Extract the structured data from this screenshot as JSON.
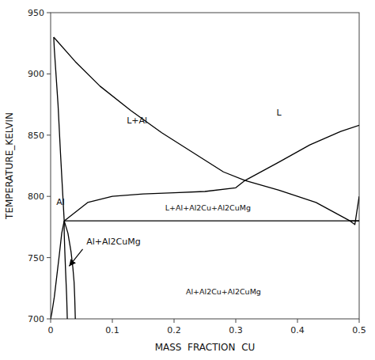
{
  "chart_data": {
    "type": "line",
    "xlabel": "MASS  FRACTION  CU",
    "ylabel": "TEMPERATURE_KELVIN",
    "xlim": [
      0,
      0.5
    ],
    "ylim": [
      700,
      950
    ],
    "xticks": [
      0,
      0.1,
      0.2,
      0.3,
      0.4,
      0.5
    ],
    "yticks": [
      700,
      750,
      800,
      850,
      900,
      950
    ],
    "color": "#000000",
    "series": [
      {
        "x": [
          0.005,
          0.006,
          0.008,
          0.012,
          0.016,
          0.022
        ],
        "values": [
          930,
          920,
          905,
          875,
          835,
          780
        ]
      },
      {
        "x": [
          0.005,
          0.04,
          0.08,
          0.13,
          0.18,
          0.23,
          0.28,
          0.315
        ],
        "values": [
          930,
          910,
          890,
          870,
          852,
          836,
          820,
          813
        ]
      },
      {
        "x": [
          0.315,
          0.37,
          0.42,
          0.47,
          0.5
        ],
        "values": [
          813,
          828,
          842,
          853,
          858
        ]
      },
      {
        "x": [
          0.022,
          0.06,
          0.1,
          0.15,
          0.2,
          0.25,
          0.3,
          0.315,
          0.37,
          0.43,
          0.485,
          0.5
        ],
        "values": [
          780,
          795,
          800,
          802,
          803,
          804,
          807,
          813,
          805,
          795,
          780,
          780
        ]
      },
      {
        "x": [
          0.022,
          0.5
        ],
        "values": [
          780,
          780
        ]
      },
      {
        "x": [
          0.022,
          0.018,
          0.014,
          0.01,
          0.006,
          0.002,
          0.0
        ],
        "values": [
          780,
          770,
          752,
          735,
          718,
          705,
          700
        ]
      },
      {
        "x": [
          0.022,
          0.022,
          0.023,
          0.024,
          0.025,
          0.026,
          0.027
        ],
        "values": [
          780,
          770,
          755,
          742,
          730,
          718,
          700
        ]
      },
      {
        "x": [
          0.022,
          0.028,
          0.033,
          0.036,
          0.038,
          0.039,
          0.04
        ],
        "values": [
          780,
          770,
          755,
          742,
          730,
          718,
          700
        ]
      },
      {
        "x": [
          0.485,
          0.493,
          0.5
        ],
        "values": [
          780,
          777,
          800
        ]
      }
    ],
    "annotations": [
      {
        "text": "L",
        "x": 0.37,
        "y": 868
      },
      {
        "text": "L+Al",
        "x": 0.14,
        "y": 862
      },
      {
        "text": "L+Al+Al2Cu+Al2CuMg",
        "x": 0.255,
        "y": 791
      },
      {
        "text": "Al",
        "x": 0.016,
        "y": 795
      },
      {
        "text": "Al+Al2CuMg",
        "x": 0.058,
        "y": 763,
        "arrow": {
          "x": 0.03,
          "y": 743,
          "from_x": 0.052,
          "from_y": 757
        }
      },
      {
        "text": "Al+Al2Cu+Al2CuMg",
        "x": 0.28,
        "y": 722
      }
    ]
  }
}
